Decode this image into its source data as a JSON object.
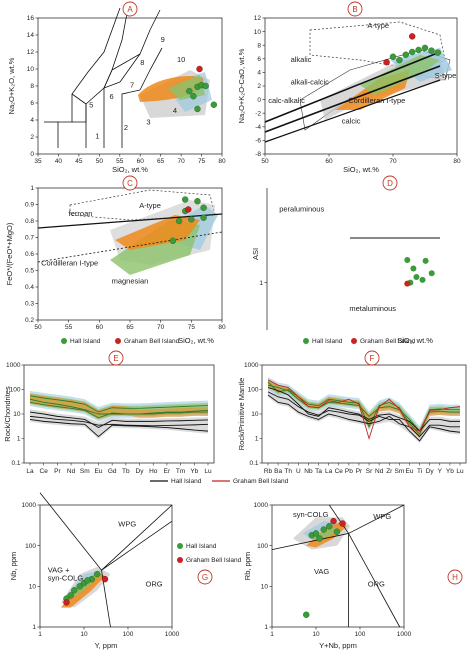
{
  "colors": {
    "hall": "#3a9b3a",
    "graham": "#cc2222",
    "orange": "#f08a1a",
    "green_field": "#8cc26a",
    "blue_field": "#9cc9e0",
    "grey_field": "#c8c8c8",
    "letter": "#c0392b"
  },
  "legend": {
    "hall": "Hall Island",
    "graham": "Graham Bell Island"
  },
  "chart_data": [
    {
      "id": "A",
      "type": "scatter",
      "xlabel": "SiO₂, wt.%",
      "ylabel": "Na₂O+K₂O, wt.%",
      "xlim": [
        35,
        80
      ],
      "ylim": [
        0,
        16
      ],
      "xticks": [
        35,
        40,
        45,
        50,
        55,
        60,
        65,
        70,
        75,
        80
      ],
      "yticks": [
        0,
        2,
        4,
        6,
        8,
        10,
        12,
        14,
        16
      ],
      "field_labels": [
        {
          "text": "1",
          "x": 49,
          "y": 1.8
        },
        {
          "text": "2",
          "x": 56,
          "y": 2.8
        },
        {
          "text": "3",
          "x": 61.5,
          "y": 3.5
        },
        {
          "text": "4",
          "x": 68,
          "y": 4.8
        },
        {
          "text": "5",
          "x": 47.5,
          "y": 5.5
        },
        {
          "text": "6",
          "x": 52.5,
          "y": 6.5
        },
        {
          "text": "7",
          "x": 57.5,
          "y": 7.8
        },
        {
          "text": "8",
          "x": 60,
          "y": 10.5
        },
        {
          "text": "9",
          "x": 65,
          "y": 13.2
        },
        {
          "text": "10",
          "x": 69,
          "y": 10.8
        }
      ],
      "hall": [
        [
          72,
          7.4
        ],
        [
          74,
          7.9
        ],
        [
          75,
          8.1
        ],
        [
          76,
          8.0
        ],
        [
          78,
          5.8
        ],
        [
          74,
          5.3
        ],
        [
          73,
          6.8
        ]
      ],
      "graham": [
        [
          74.5,
          10.0
        ]
      ]
    },
    {
      "id": "B",
      "type": "scatter",
      "xlabel": "SiO₂, wt.%",
      "ylabel": "Na₂O+K₂O-CaO, wt.%",
      "xlim": [
        50,
        80
      ],
      "ylim": [
        -8,
        12
      ],
      "xticks": [
        50,
        60,
        70,
        80
      ],
      "yticks": [
        -8,
        -6,
        -4,
        -2,
        0,
        2,
        4,
        6,
        8,
        10,
        12
      ],
      "field_labels": [
        {
          "text": "alkalic",
          "x": 54,
          "y": 5.5
        },
        {
          "text": "alkali-calcic",
          "x": 54,
          "y": 2.2
        },
        {
          "text": "calc-alkalic",
          "x": 50.5,
          "y": -0.5
        },
        {
          "text": "calcic",
          "x": 62,
          "y": -3.5
        },
        {
          "text": "A-type",
          "x": 66,
          "y": 10.5
        },
        {
          "text": "S-type",
          "x": 76.5,
          "y": 3.2
        },
        {
          "text": "Cordilleran I-type",
          "x": 63,
          "y": -0.5
        }
      ],
      "hall": [
        [
          70,
          6.3
        ],
        [
          72,
          6.6
        ],
        [
          73,
          7.0
        ],
        [
          74,
          7.3
        ],
        [
          75,
          7.6
        ],
        [
          76,
          7.2
        ],
        [
          77,
          6.9
        ],
        [
          71,
          5.8
        ]
      ],
      "graham": [
        [
          73,
          9.3
        ],
        [
          69,
          5.5
        ]
      ]
    },
    {
      "id": "C",
      "type": "scatter",
      "xlabel": "SiO₂, wt.%",
      "ylabel": "FeO*/(FeO*+MgO)",
      "xlim": [
        50,
        80
      ],
      "ylim": [
        0.2,
        1.0
      ],
      "xticks": [
        50,
        55,
        60,
        65,
        70,
        75,
        80
      ],
      "yticks": [
        0.2,
        0.3,
        0.4,
        0.5,
        0.6,
        0.7,
        0.8,
        0.9,
        1.0
      ],
      "field_labels": [
        {
          "text": "ferroan",
          "x": 55,
          "y": 0.83
        },
        {
          "text": "A-type",
          "x": 66.5,
          "y": 0.88
        },
        {
          "text": "Cordilleran I-type",
          "x": 50.5,
          "y": 0.53
        },
        {
          "text": "magnesian",
          "x": 62,
          "y": 0.42
        }
      ],
      "hall": [
        [
          74,
          0.93
        ],
        [
          76,
          0.92
        ],
        [
          77,
          0.88
        ],
        [
          74,
          0.86
        ],
        [
          73,
          0.8
        ],
        [
          75,
          0.81
        ],
        [
          77,
          0.82
        ],
        [
          72,
          0.68
        ]
      ],
      "graham": [
        [
          74.5,
          0.87
        ]
      ]
    },
    {
      "id": "D",
      "type": "scatter",
      "xlabel": "SiO₂, wt.%",
      "ylabel": "ASI",
      "xlim": [
        50,
        80
      ],
      "ylim": [
        0.5,
        2.0
      ],
      "field_labels": [
        {
          "text": "peraluminous",
          "x": 52,
          "y": 1.75
        },
        {
          "text": "metaluminous",
          "x": 63.5,
          "y": 0.7
        }
      ],
      "hall": [
        [
          73,
          1.24
        ],
        [
          76,
          1.23
        ],
        [
          74,
          1.15
        ],
        [
          77,
          1.1
        ],
        [
          74.5,
          1.06
        ],
        [
          75.5,
          1.03
        ],
        [
          73.5,
          1.0
        ]
      ],
      "graham": [
        [
          73,
          0.99
        ]
      ]
    },
    {
      "id": "E",
      "type": "line",
      "ylabel": "Rock/Chondrites",
      "categories": [
        "La",
        "Ce",
        "Pr",
        "Nd",
        "Sm",
        "Eu",
        "Gd",
        "Tb",
        "Dy",
        "Ho",
        "Er",
        "Tm",
        "Yb",
        "Lu"
      ],
      "ylim": [
        0.1,
        1000
      ],
      "yticks": [
        0.1,
        1,
        10,
        100,
        1000
      ],
      "yscale": "log",
      "green_lines": [
        [
          40,
          30,
          25,
          20,
          15,
          10,
          10,
          10,
          10,
          11,
          12,
          12,
          13,
          14
        ],
        [
          55,
          45,
          38,
          32,
          25,
          12,
          18,
          17,
          17,
          18,
          19,
          20,
          21,
          22
        ],
        [
          30,
          24,
          20,
          17,
          14,
          7,
          11,
          10,
          10,
          10,
          11,
          11,
          12,
          12
        ]
      ],
      "black_lines": [
        [
          8,
          7,
          6,
          5.5,
          4.8,
          3.5,
          3.8,
          3.5,
          3.4,
          3.3,
          3.4,
          3.5,
          3.6,
          3.8
        ],
        [
          12,
          10,
          8,
          7,
          6,
          2.8,
          5.5,
          5,
          5,
          5,
          5.2,
          5.3,
          5.5,
          5.7
        ],
        [
          6,
          5,
          4.5,
          4,
          3.8,
          1.2,
          3.5,
          3.3,
          3.2,
          3.0,
          2.8,
          2.5,
          2.2,
          2.0
        ]
      ]
    },
    {
      "id": "F",
      "type": "line",
      "ylabel": "Rock/Primitive Mantle",
      "categories": [
        "Rb",
        "Ba",
        "Th",
        "U",
        "Nb",
        "Ta",
        "La",
        "Ce",
        "Pb",
        "Pr",
        "Sr",
        "Nd",
        "Zr",
        "Sm",
        "Eu",
        "Ti",
        "Dy",
        "Y",
        "Yb",
        "Lu"
      ],
      "ylim": [
        0.1,
        1000
      ],
      "yticks": [
        0.1,
        1,
        10,
        100,
        1000
      ],
      "yscale": "log",
      "green_lines": [
        [
          150,
          120,
          90,
          40,
          20,
          18,
          30,
          28,
          25,
          22,
          8,
          18,
          20,
          15,
          6,
          2,
          12,
          13,
          12,
          12
        ],
        [
          200,
          80,
          100,
          50,
          25,
          22,
          40,
          35,
          30,
          28,
          3,
          22,
          30,
          18,
          4,
          1.5,
          15,
          16,
          15,
          15
        ]
      ],
      "black_lines": [
        [
          60,
          30,
          25,
          12,
          8,
          6,
          10,
          8,
          6,
          5,
          4,
          5,
          8,
          4,
          3,
          1.2,
          3.5,
          3.5,
          3,
          3
        ],
        [
          120,
          90,
          60,
          25,
          10,
          8,
          18,
          15,
          12,
          10,
          6,
          9,
          10,
          7,
          5,
          2,
          6,
          6,
          5,
          5
        ],
        [
          80,
          50,
          40,
          20,
          12,
          9,
          14,
          12,
          10,
          9,
          5,
          8,
          6,
          6,
          2,
          0.8,
          3,
          2.5,
          2,
          1.8
        ]
      ],
      "red_line": [
        250,
        150,
        120,
        50,
        20,
        18,
        35,
        30,
        40,
        25,
        1,
        20,
        40,
        16,
        3,
        2,
        14,
        15,
        18,
        20
      ],
      "legend": [
        "Hall Island",
        "Graham Bell Island"
      ]
    },
    {
      "id": "G",
      "type": "scatter",
      "xlabel": "Y, ppm",
      "ylabel": "Nb, ppm",
      "xscale": "log",
      "yscale": "log",
      "xlim": [
        1,
        1000
      ],
      "ylim": [
        1,
        1000
      ],
      "xticks": [
        1,
        10,
        100,
        1000
      ],
      "yticks": [
        1,
        10,
        100,
        1000
      ],
      "field_labels": [
        {
          "text": "WPG",
          "x": 60,
          "y": 300
        },
        {
          "text": "VAG +",
          "x": 1.5,
          "y": 22
        },
        {
          "text": "syn-COLG",
          "x": 1.5,
          "y": 14
        },
        {
          "text": "ORG",
          "x": 250,
          "y": 10
        }
      ],
      "hall": [
        [
          4,
          5
        ],
        [
          5,
          6
        ],
        [
          6,
          8
        ],
        [
          8,
          10
        ],
        [
          10,
          12
        ],
        [
          15,
          15
        ],
        [
          20,
          20
        ],
        [
          12,
          14
        ]
      ],
      "graham": [
        [
          30,
          15
        ],
        [
          4,
          4
        ]
      ]
    },
    {
      "id": "H",
      "type": "scatter",
      "xlabel": "Y+Nb, ppm",
      "ylabel": "Rb, ppm",
      "xscale": "log",
      "yscale": "log",
      "xlim": [
        1,
        1000
      ],
      "ylim": [
        1,
        1000
      ],
      "xticks": [
        1,
        10,
        100,
        1000
      ],
      "yticks": [
        1,
        10,
        100,
        1000
      ],
      "field_labels": [
        {
          "text": "syn-COLG",
          "x": 3,
          "y": 500
        },
        {
          "text": "WPG",
          "x": 200,
          "y": 450
        },
        {
          "text": "VAG",
          "x": 9,
          "y": 20
        },
        {
          "text": "ORG",
          "x": 150,
          "y": 10
        }
      ],
      "hall": [
        [
          8,
          180
        ],
        [
          10,
          200
        ],
        [
          15,
          250
        ],
        [
          20,
          300
        ],
        [
          30,
          220
        ],
        [
          12,
          150
        ],
        [
          6,
          2
        ]
      ],
      "graham": [
        [
          40,
          350
        ],
        [
          25,
          400
        ]
      ]
    }
  ]
}
